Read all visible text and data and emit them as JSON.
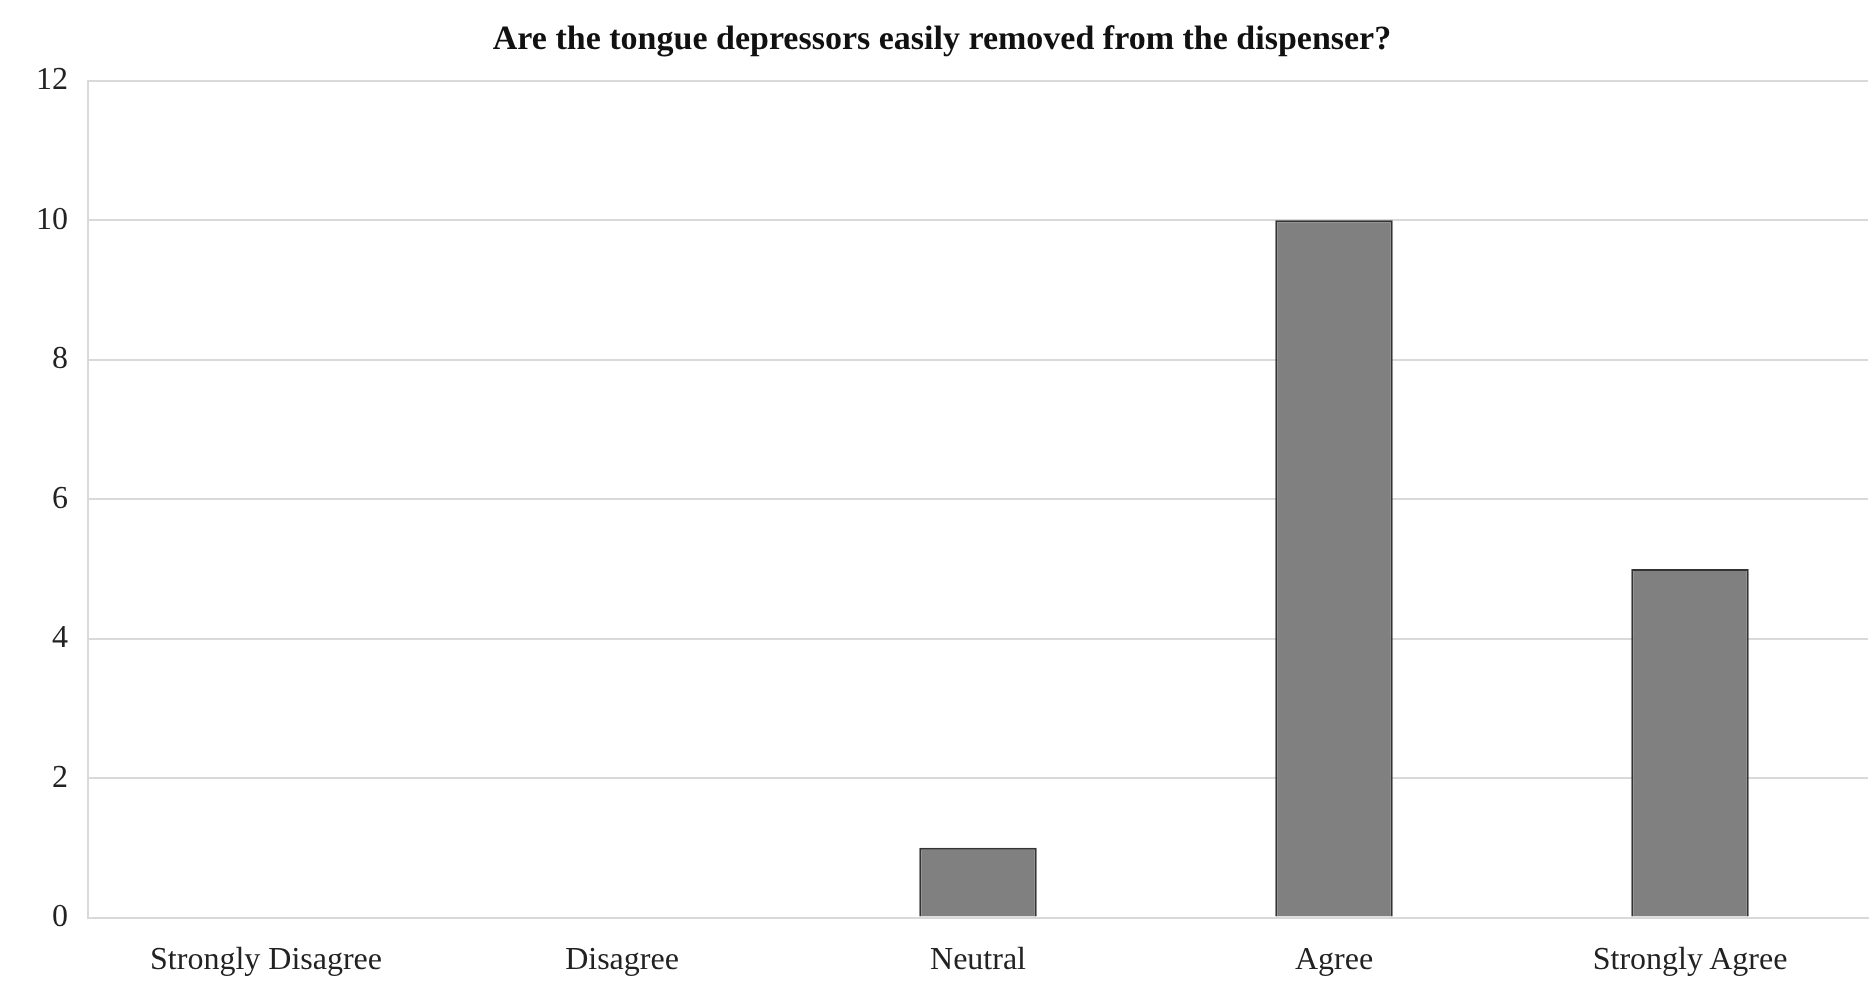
{
  "chart_data": {
    "type": "bar",
    "title": "Are the tongue depressors easily removed from the dispenser?",
    "categories": [
      "Strongly Disagree",
      "Disagree",
      "Neutral",
      "Agree",
      "Strongly Agree"
    ],
    "values": [
      0,
      0,
      1,
      10,
      5
    ],
    "color": "#808080",
    "ylim": [
      0,
      12
    ],
    "yticks": [
      0,
      2,
      4,
      6,
      8,
      10,
      12
    ],
    "grid": "y",
    "legend": false
  }
}
